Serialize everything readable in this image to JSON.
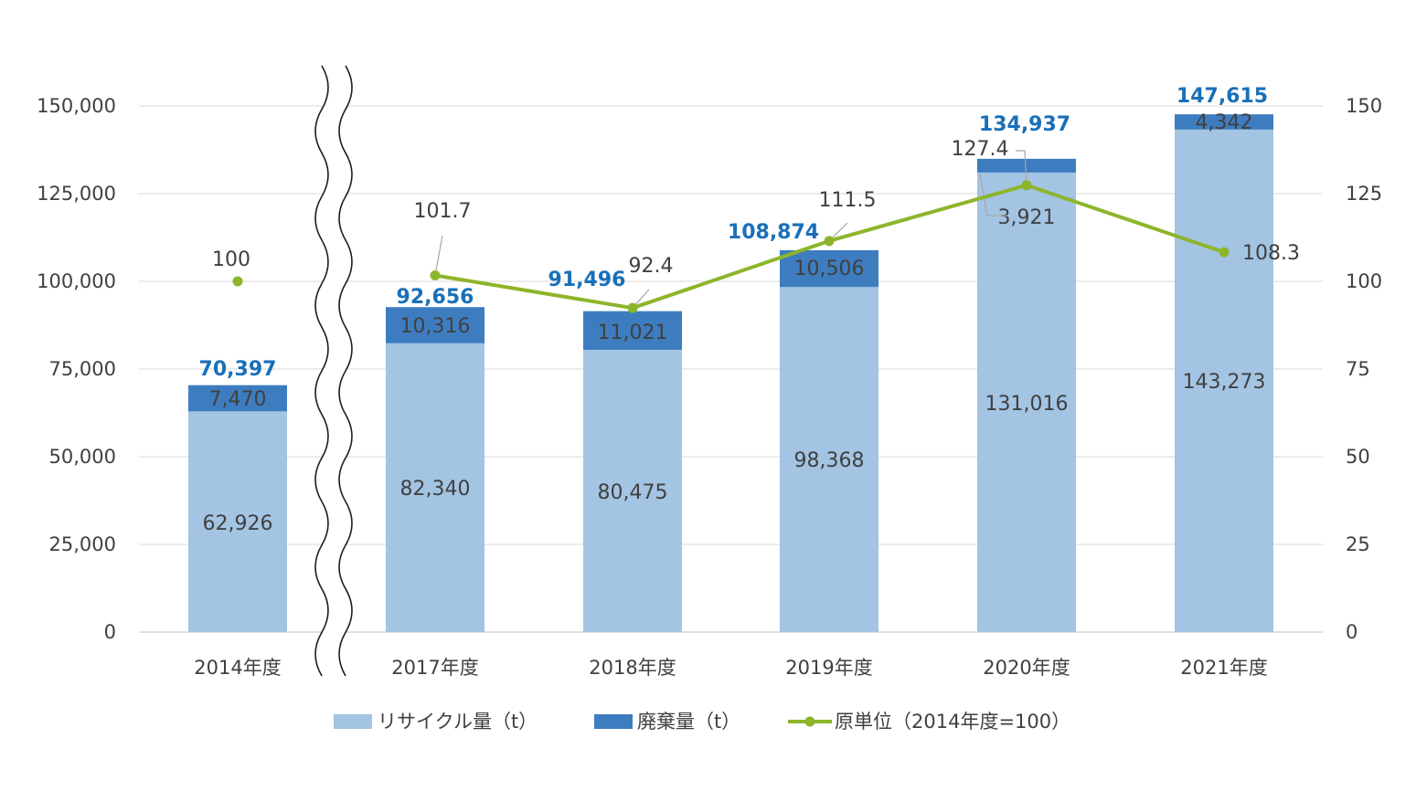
{
  "chart_data": {
    "type": "bar",
    "stacked": true,
    "categories": [
      "2014年度",
      "2017年度",
      "2018年度",
      "2019年度",
      "2020年度",
      "2021年度"
    ],
    "axis_break_after": "2014年度",
    "series": [
      {
        "name": "リサイクル量（t）",
        "type": "bar",
        "axis": "left",
        "color": "#a3c4e3",
        "values": [
          62926,
          82340,
          80475,
          98368,
          131016,
          143273
        ]
      },
      {
        "name": "廃棄量（t）",
        "type": "bar",
        "axis": "left",
        "color": "#3d7dbf",
        "values": [
          7470,
          10316,
          11021,
          10506,
          3921,
          4342
        ]
      },
      {
        "name": "原単位（2014年度=100）",
        "type": "line",
        "axis": "right",
        "color": "#8db52b",
        "values": [
          100,
          101.7,
          92.4,
          111.5,
          127.4,
          108.3
        ],
        "connect_from_index": 1
      }
    ],
    "segment_labels": {
      "recycle": [
        "62,926",
        "82,340",
        "80,475",
        "98,368",
        "131,016",
        "143,273"
      ],
      "waste": [
        "7,470",
        "10,316",
        "11,021",
        "10,506",
        "3,921",
        "4,342"
      ]
    },
    "totals": [
      70397,
      92656,
      91496,
      108874,
      134937,
      147615
    ],
    "total_labels": [
      "70,397",
      "92,656",
      "91,496",
      "108,874",
      "134,937",
      "147,615"
    ],
    "ratio_labels": [
      "100",
      "101.7",
      "92.4",
      "111.5",
      "127.4",
      "108.3"
    ],
    "ylim_left": [
      0,
      150000
    ],
    "yticks_left": [
      "0",
      "25,000",
      "50,000",
      "75,000",
      "100,000",
      "125,000",
      "150,000"
    ],
    "ylim_right": [
      0,
      150
    ],
    "yticks_right": [
      "0",
      "25",
      "50",
      "75",
      "100",
      "125",
      "150"
    ],
    "grid": true,
    "legend_position": "bottom",
    "colors": {
      "recycle": "#a3c4e3",
      "waste": "#3d7dbf",
      "ratio": "#8db52b",
      "total_text": "#1a70b8",
      "grid": "#d9d9d9"
    }
  }
}
